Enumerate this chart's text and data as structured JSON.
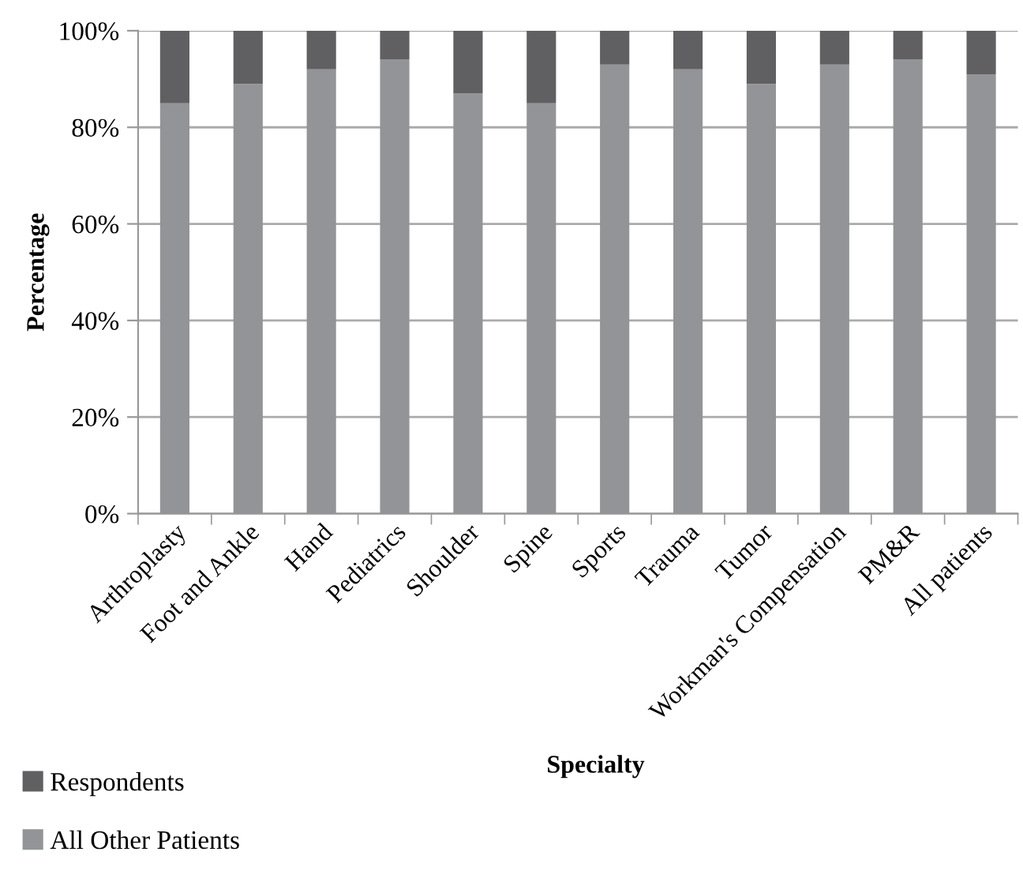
{
  "chart_data": {
    "type": "bar",
    "stacked": true,
    "xlabel": "Specialty",
    "ylabel": "Percentage",
    "categories": [
      "Arthroplasty",
      "Foot and Ankle",
      "Hand",
      "Pediatrics",
      "Shoulder",
      "Spine",
      "Sports",
      "Trauma",
      "Tumor",
      "Workman's Compensation",
      "PM&R",
      "All patients"
    ],
    "series": [
      {
        "name": "All Other Patients",
        "color": "#939497",
        "values": [
          85,
          89,
          92,
          94,
          87,
          85,
          93,
          92,
          89,
          93,
          94,
          91
        ]
      },
      {
        "name": "Respondents",
        "color": "#606062",
        "values": [
          15,
          11,
          8,
          6,
          13,
          15,
          7,
          8,
          11,
          7,
          6,
          9
        ]
      }
    ],
    "ylim": [
      0,
      100
    ],
    "yticks": [
      {
        "value": 0,
        "label": "0%"
      },
      {
        "value": 20,
        "label": "20%"
      },
      {
        "value": 40,
        "label": "40%"
      },
      {
        "value": 60,
        "label": "60%"
      },
      {
        "value": 80,
        "label": "80%"
      },
      {
        "value": 100,
        "label": "100%"
      }
    ],
    "grid": "y",
    "legend": "bottom left"
  }
}
